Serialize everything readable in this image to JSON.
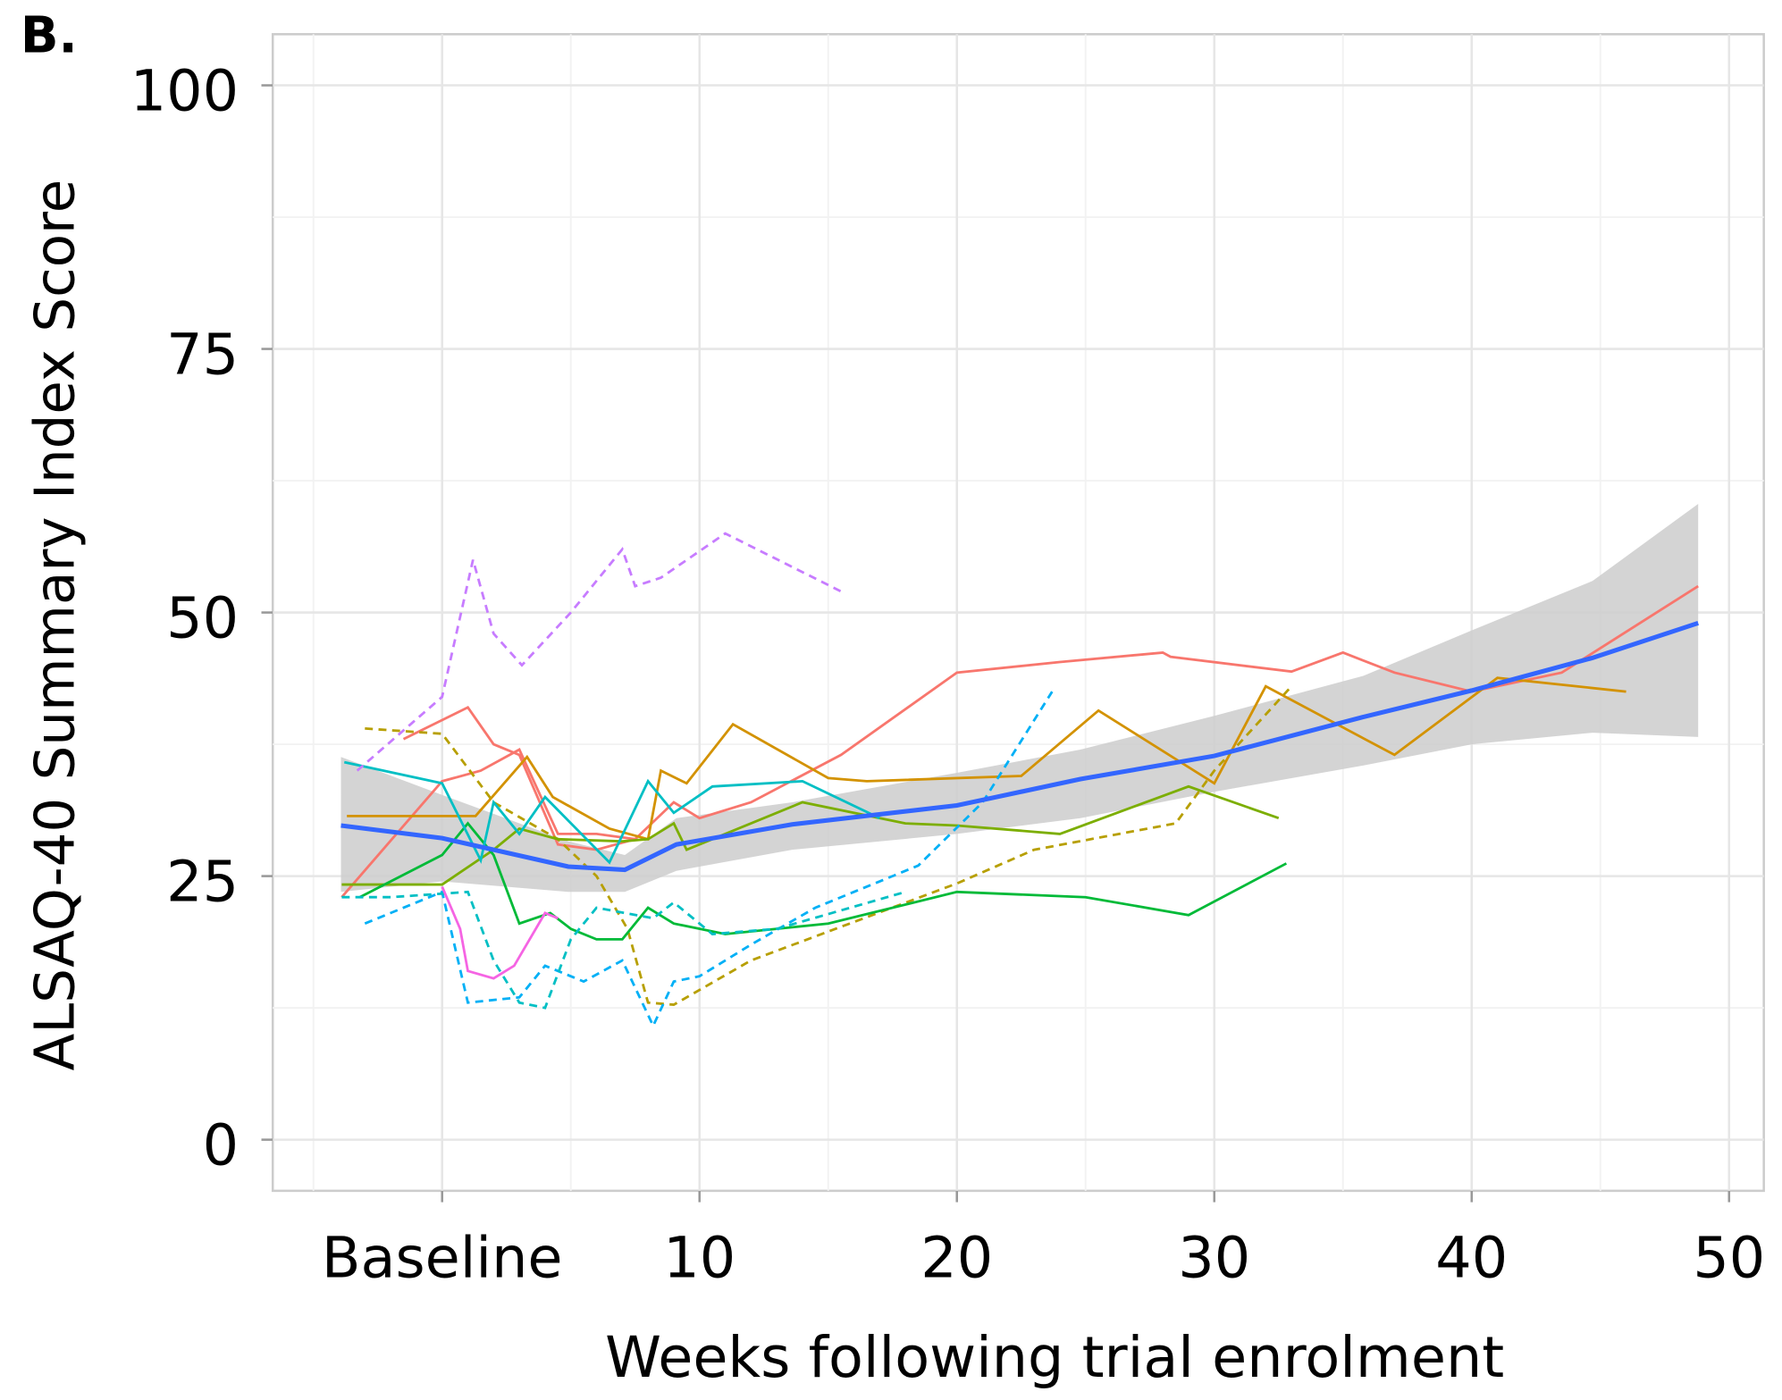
{
  "chart_data": {
    "type": "line",
    "panel_label": "B.",
    "xlabel": "Weeks following trial enrolment",
    "ylabel": "ALSAQ-40 Summary Index Score",
    "xlim": [
      -6.58,
      51.35
    ],
    "ylim": [
      -4.85,
      104.85
    ],
    "xticks": [
      {
        "value": 0,
        "label": "Baseline"
      },
      10,
      20,
      30,
      40,
      50
    ],
    "yticks": [
      0,
      25,
      50,
      75,
      100
    ],
    "xminor": [
      -5,
      5,
      15,
      25,
      35,
      45
    ],
    "yminor": [
      12.5,
      37.5,
      62.5,
      87.5
    ],
    "grid": true,
    "series": [
      {
        "color": "#f8766d",
        "dash": false,
        "x": [
          -3.9,
          0,
          1.5,
          3,
          4.5,
          6,
          7.5,
          9,
          10,
          12,
          15.5,
          20,
          24,
          28,
          28.3,
          33,
          35,
          37,
          40,
          43.5,
          48.8
        ],
        "values": [
          23,
          34,
          35,
          37,
          29,
          29,
          28.5,
          32,
          30.5,
          32,
          36.5,
          44.3,
          45.3,
          46.2,
          45.8,
          44.4,
          46.2,
          44.3,
          42.5,
          44.3,
          52.5
        ]
      },
      {
        "color": "#f8766d",
        "dash": false,
        "x": [
          -1.5,
          1,
          2,
          3,
          4.5,
          6,
          7.5
        ],
        "values": [
          38,
          41,
          37.5,
          36.5,
          28,
          27.5,
          28.5
        ]
      },
      {
        "color": "#d39200",
        "dash": false,
        "x": [
          -3.7,
          1.3,
          3.3,
          4.3,
          6.5,
          8,
          8.5,
          9.5,
          11.3,
          15,
          16.5,
          22.5,
          25.5,
          30,
          32,
          37,
          41,
          46
        ],
        "values": [
          30.7,
          30.7,
          36.3,
          32.5,
          29.5,
          28.5,
          35,
          33.8,
          39.4,
          34.3,
          34,
          34.5,
          40.7,
          33.8,
          43,
          36.5,
          43.8,
          42.5
        ]
      },
      {
        "color": "#b79f00",
        "dash": true,
        "x": [
          -3,
          0,
          2,
          4.5,
          6,
          7.2,
          8,
          9,
          12,
          20,
          23,
          28.5,
          30,
          33
        ],
        "values": [
          39,
          38.5,
          32,
          28.5,
          25,
          20,
          13,
          12.8,
          17,
          24.3,
          27.5,
          30,
          35,
          43
        ]
      },
      {
        "color": "#7cae00",
        "dash": false,
        "x": [
          -3.9,
          0,
          2,
          3,
          4.5,
          7,
          8,
          9,
          9.5,
          14,
          18,
          20,
          24,
          29,
          32.5
        ],
        "values": [
          24.2,
          24.2,
          27.5,
          29.5,
          28.5,
          28.3,
          28.5,
          30,
          27.5,
          32,
          30,
          29.8,
          29,
          33.5,
          30.5
        ]
      },
      {
        "color": "#00ba38",
        "dash": false,
        "x": [
          -3.2,
          0,
          1,
          2,
          3,
          4.2,
          5,
          6,
          7,
          8,
          9,
          11,
          15,
          20,
          25,
          29,
          32.8
        ],
        "values": [
          23,
          27,
          30,
          27,
          20.5,
          21.5,
          20,
          19,
          19,
          22,
          20.5,
          19.5,
          20.5,
          23.5,
          23,
          21.3,
          26.2
        ]
      },
      {
        "color": "#00bfc4",
        "dash": false,
        "x": [
          -3.8,
          0,
          1.5,
          2,
          3,
          4,
          6.5,
          8,
          9,
          10.5,
          14,
          17
        ],
        "values": [
          35.8,
          33.8,
          26.5,
          32,
          29,
          32.5,
          26.3,
          34,
          31,
          33.5,
          34,
          30.5
        ]
      },
      {
        "color": "#00b0f6",
        "dash": true,
        "x": [
          -3,
          0,
          1,
          3,
          4,
          5.5,
          7,
          8.2,
          9,
          10,
          12,
          14.5,
          18.5,
          21,
          23.7
        ],
        "values": [
          20.5,
          23.5,
          13,
          13.5,
          16.5,
          15,
          17,
          10.8,
          15,
          15.5,
          18.5,
          22,
          26,
          32,
          42.5
        ]
      },
      {
        "color": "#00bfc4",
        "dash": true,
        "x": [
          -3.9,
          -2,
          1,
          2,
          3,
          4,
          5,
          6,
          8.2,
          9,
          10.5,
          13,
          18
        ],
        "values": [
          23,
          23,
          23.5,
          17,
          13,
          12.5,
          19,
          22,
          21,
          22.5,
          19.5,
          20,
          23.5
        ]
      },
      {
        "color": "#c77cff",
        "dash": true,
        "x": [
          -3.3,
          0,
          1.2,
          2,
          3.1,
          5,
          6,
          7,
          7.5,
          8.5,
          11,
          15.5
        ],
        "values": [
          35,
          42,
          55,
          48,
          45,
          50,
          53,
          56,
          52.5,
          53.3,
          57.5,
          52
        ]
      },
      {
        "color": "#f564e3",
        "dash": false,
        "x": [
          0,
          0.7,
          1,
          2,
          2.8,
          4,
          4.5
        ],
        "values": [
          24,
          20,
          16,
          15.3,
          16.5,
          21.5,
          21
        ]
      }
    ],
    "smooth": {
      "color": "#3366ff",
      "band_color": "#cccccc",
      "x": [
        -3.93,
        0,
        4.9,
        7.1,
        9.1,
        13.6,
        20,
        24.8,
        30,
        35.8,
        40,
        44.7,
        48.8
      ],
      "values": [
        29.8,
        28.6,
        25.9,
        25.6,
        28.0,
        29.9,
        31.7,
        34.2,
        36.4,
        40.1,
        42.6,
        45.7,
        49.0
      ],
      "lower": [
        23.5,
        24.5,
        23.5,
        23.5,
        25.5,
        27.5,
        29,
        30.5,
        33,
        35.5,
        37.5,
        38.6,
        38.2
      ],
      "upper": [
        36.3,
        32.7,
        28.3,
        27,
        30.5,
        32,
        34.8,
        37,
        40.2,
        44,
        48.3,
        53,
        60.3
      ]
    }
  }
}
